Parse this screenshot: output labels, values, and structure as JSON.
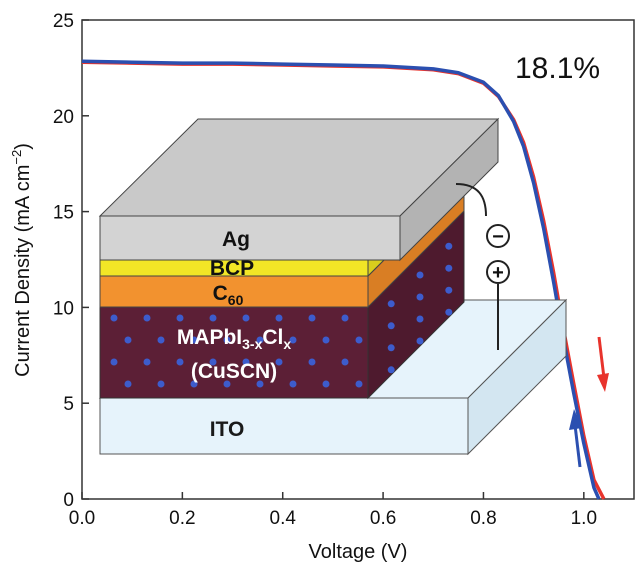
{
  "chart_data": {
    "type": "line",
    "title": "",
    "xlabel": "Voltage (V)",
    "ylabel_main": "Current Density (mA cm",
    "ylabel_sup": "−2",
    "ylabel_close": ")",
    "xlim": [
      0.0,
      1.1
    ],
    "ylim": [
      0,
      25
    ],
    "x_ticks": [
      0.0,
      0.2,
      0.4,
      0.6,
      0.8,
      1.0
    ],
    "x_tick_labels": [
      "0.0",
      "0.2",
      "0.4",
      "0.6",
      "0.8",
      "1.0"
    ],
    "y_ticks": [
      0,
      5,
      10,
      15,
      20,
      25
    ],
    "y_tick_labels": [
      "0",
      "5",
      "10",
      "15",
      "20",
      "25"
    ],
    "grid": false,
    "annotation": "18.1%",
    "series": [
      {
        "color": "#e8332c",
        "x": [
          0.0,
          0.1,
          0.2,
          0.3,
          0.4,
          0.5,
          0.6,
          0.7,
          0.75,
          0.8,
          0.83,
          0.86,
          0.88,
          0.9,
          0.92,
          0.94,
          0.96,
          0.98,
          1.0,
          1.02,
          1.04
        ],
        "y": [
          22.8,
          22.75,
          22.7,
          22.7,
          22.65,
          22.6,
          22.55,
          22.4,
          22.2,
          21.7,
          21.0,
          19.8,
          18.6,
          16.8,
          14.5,
          11.8,
          8.8,
          6.0,
          3.3,
          1.0,
          0.0
        ]
      },
      {
        "color": "#2b4fb0",
        "x": [
          0.0,
          0.1,
          0.2,
          0.3,
          0.4,
          0.5,
          0.6,
          0.7,
          0.75,
          0.8,
          0.83,
          0.86,
          0.88,
          0.9,
          0.92,
          0.94,
          0.96,
          0.98,
          1.0,
          1.02,
          1.03
        ],
        "y": [
          22.85,
          22.8,
          22.75,
          22.75,
          22.7,
          22.65,
          22.6,
          22.45,
          22.25,
          21.75,
          21.05,
          19.7,
          18.4,
          16.5,
          14.1,
          11.3,
          8.3,
          5.5,
          2.9,
          0.6,
          0.0
        ]
      }
    ]
  },
  "device": {
    "layers": {
      "ag": "Ag",
      "bcp": "BCP",
      "c60_base": "C",
      "c60_sub": "60",
      "perovskite_a": "MAPbI",
      "perovskite_sub": "3-x",
      "perovskite_b": "Cl",
      "perovskite_sub2": "x",
      "perovskite_dopant": "(CuSCN)",
      "ito": "ITO"
    },
    "terminals": {
      "negative": "−",
      "positive": "+"
    },
    "colors": {
      "ag": "#d3d3d3",
      "bcp": "#f2e626",
      "c60": "#f2922f",
      "perovskite": "#5c1f36",
      "dots": "#3d5ccc",
      "ito": "#e6f3fb"
    }
  }
}
